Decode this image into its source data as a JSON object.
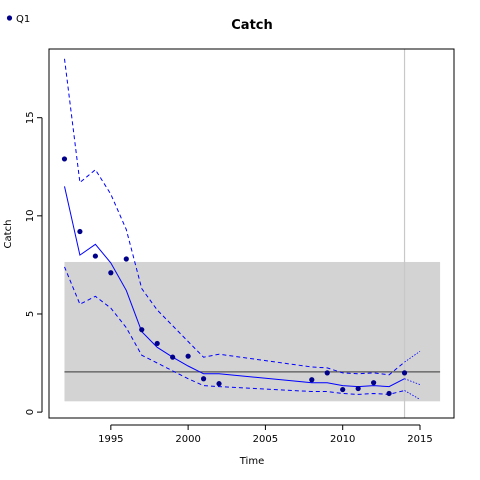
{
  "chart_data": {
    "type": "line",
    "title": "Catch",
    "xlabel": "Time",
    "ylabel": "Catch",
    "xlim": [
      1991,
      2017.2
    ],
    "ylim": [
      -0.3,
      18.5
    ],
    "x_ticks": [
      1995,
      2000,
      2005,
      2010,
      2015
    ],
    "y_ticks": [
      0,
      5,
      10,
      15
    ],
    "legend": {
      "position": "top-left",
      "entries": [
        {
          "label": "Q1",
          "color": "#00008B"
        }
      ]
    },
    "reference_band": {
      "x_range": [
        1992,
        2016.3
      ],
      "y_range": [
        0.55,
        7.65
      ],
      "color": "#d3d3d3"
    },
    "reference_hline": {
      "y": 2.05,
      "color": "#555555"
    },
    "reference_vline": {
      "x": 2014,
      "color": "#c8c8c8"
    },
    "observed_points": {
      "name": "Q1",
      "color": "#00008B",
      "x": [
        1992,
        1993,
        1994,
        1995,
        1996,
        1997,
        1998,
        1999,
        2000,
        2001,
        2002,
        2008,
        2009,
        2010,
        2011,
        2012,
        2013,
        2014
      ],
      "y": [
        12.9,
        9.2,
        7.95,
        7.1,
        7.8,
        4.2,
        3.5,
        2.8,
        2.85,
        1.7,
        1.45,
        1.65,
        2.0,
        1.15,
        1.2,
        1.5,
        0.95,
        2.0
      ]
    },
    "fitted": {
      "color": "#0000FF",
      "x": [
        1992,
        1993,
        1994,
        1995,
        1996,
        1997,
        1998,
        1999,
        2000,
        2001,
        2002,
        2008,
        2009,
        2010,
        2011,
        2012,
        2013,
        2014
      ],
      "mid": [
        11.5,
        8.0,
        8.55,
        7.6,
        6.2,
        4.1,
        3.3,
        2.8,
        2.35,
        1.95,
        1.95,
        1.5,
        1.5,
        1.35,
        1.3,
        1.35,
        1.3,
        1.7
      ],
      "lower": [
        7.4,
        5.5,
        5.9,
        5.3,
        4.3,
        2.9,
        2.5,
        2.1,
        1.7,
        1.35,
        1.3,
        1.05,
        1.05,
        0.95,
        0.9,
        0.95,
        0.9,
        1.1
      ],
      "upper": [
        18.0,
        11.7,
        12.35,
        11.1,
        9.3,
        6.3,
        5.2,
        4.4,
        3.6,
        2.8,
        2.95,
        2.3,
        2.25,
        2.0,
        1.95,
        2.0,
        1.9,
        2.55
      ]
    },
    "forecast": {
      "color": "#0000FF",
      "x": [
        2014,
        2015
      ],
      "mid": [
        1.7,
        1.4
      ],
      "lower": [
        1.1,
        0.65
      ],
      "upper": [
        2.55,
        3.1
      ]
    }
  }
}
